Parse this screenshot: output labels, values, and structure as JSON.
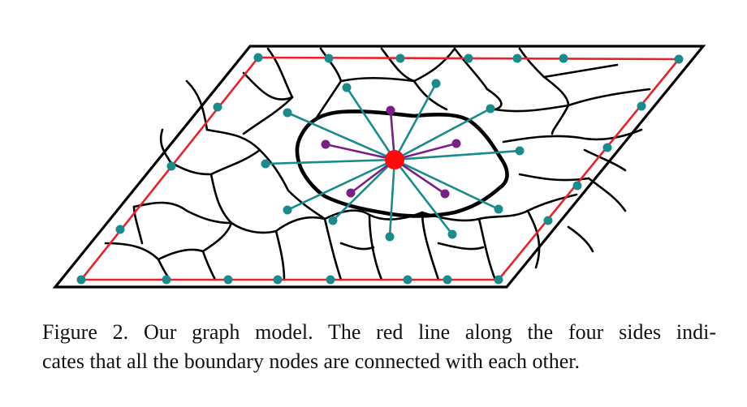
{
  "caption": {
    "line1": "Figure 2. Our graph model. The red line along the four sides indi-",
    "line2": "cates that all the boundary nodes are connected with each other."
  },
  "colors": {
    "boundary_line": "#e8212a",
    "boundary_node": "#1a8b8b",
    "outer_edge": "#1a8b8b",
    "inner_edge": "#7a1f85",
    "center_node": "#ff0a0a"
  }
}
